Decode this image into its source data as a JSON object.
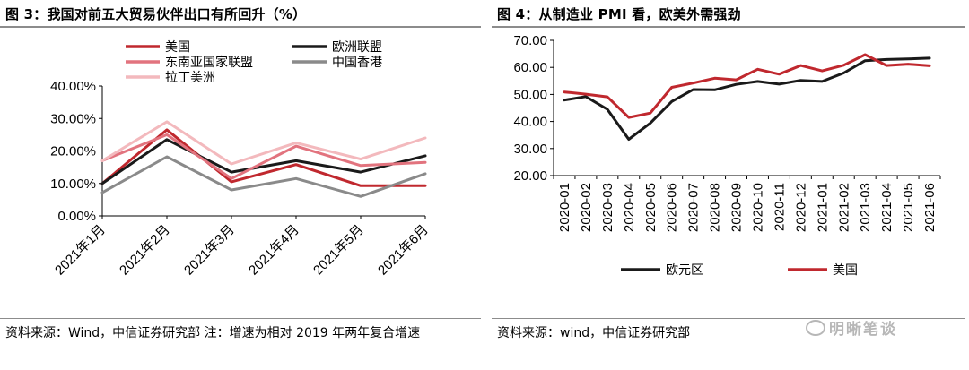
{
  "left": {
    "title": "图 3：我国对前五大贸易伙伴出口有所回升（%）",
    "source": "资料来源：Wind，中信证券研究部  注：增速为相对 2019 年两年复合增速",
    "chart_data": {
      "type": "line",
      "title": "图 3：我国对前五大贸易伙伴出口有所回升（%）",
      "categories": [
        "2021年1月",
        "2021年2月",
        "2021年3月",
        "2021年4月",
        "2021年5月",
        "2021年6月"
      ],
      "ylim": [
        0,
        40
      ],
      "yticks": [
        0,
        10,
        20,
        30,
        40
      ],
      "ytick_labels": [
        "0.00%",
        "10.00%",
        "20.00%",
        "30.00%",
        "40.00%"
      ],
      "legend_position": "top",
      "series": [
        {
          "name": "美国",
          "color": "#c0282e",
          "values": [
            10.0,
            26.5,
            10.5,
            15.8,
            9.3,
            9.3
          ]
        },
        {
          "name": "欧洲联盟",
          "color": "#1a1a1a",
          "values": [
            10.0,
            23.5,
            13.5,
            17.0,
            13.5,
            18.5
          ]
        },
        {
          "name": "东南亚国家联盟",
          "color": "#e2737e",
          "values": [
            17.0,
            25.0,
            11.5,
            21.5,
            15.5,
            16.5
          ]
        },
        {
          "name": "中国香港",
          "color": "#8a8a8a",
          "values": [
            7.2,
            18.2,
            8.0,
            11.5,
            6.0,
            13.0
          ]
        },
        {
          "name": "拉丁美洲",
          "color": "#f3b9bd",
          "values": [
            17.0,
            29.0,
            16.0,
            22.5,
            17.5,
            24.0
          ]
        }
      ]
    }
  },
  "right": {
    "title": "图 4：从制造业 PMI 看，欧美外需强劲",
    "source": "资料来源：wind，中信证券研究部",
    "watermark": "明晰笔谈",
    "chart_data": {
      "type": "line",
      "title": "图 4：从制造业 PMI 看，欧美外需强劲",
      "categories": [
        "2020-01",
        "2020-02",
        "2020-03",
        "2020-04",
        "2020-05",
        "2020-06",
        "2020-07",
        "2020-08",
        "2020-09",
        "2020-10",
        "2020-11",
        "2020-12",
        "2021-01",
        "2021-02",
        "2021-03",
        "2021-04",
        "2021-05",
        "2021-06"
      ],
      "ylim": [
        20,
        70
      ],
      "yticks": [
        20,
        30,
        40,
        50,
        60,
        70
      ],
      "ytick_labels": [
        "20.00",
        "30.00",
        "40.00",
        "50.00",
        "60.00",
        "70.00"
      ],
      "legend_position": "bottom",
      "series": [
        {
          "name": "欧元区",
          "color": "#1a1a1a",
          "values": [
            47.9,
            49.2,
            44.5,
            33.4,
            39.4,
            47.4,
            51.8,
            51.7,
            53.7,
            54.8,
            53.8,
            55.2,
            54.8,
            57.9,
            62.5,
            62.9,
            63.1,
            63.4
          ]
        },
        {
          "name": "美国",
          "color": "#c0282e",
          "values": [
            50.9,
            50.1,
            49.1,
            41.5,
            43.1,
            52.6,
            54.2,
            56.0,
            55.4,
            59.3,
            57.5,
            60.7,
            58.7,
            60.8,
            64.7,
            60.7,
            61.2,
            60.6
          ]
        }
      ]
    }
  }
}
